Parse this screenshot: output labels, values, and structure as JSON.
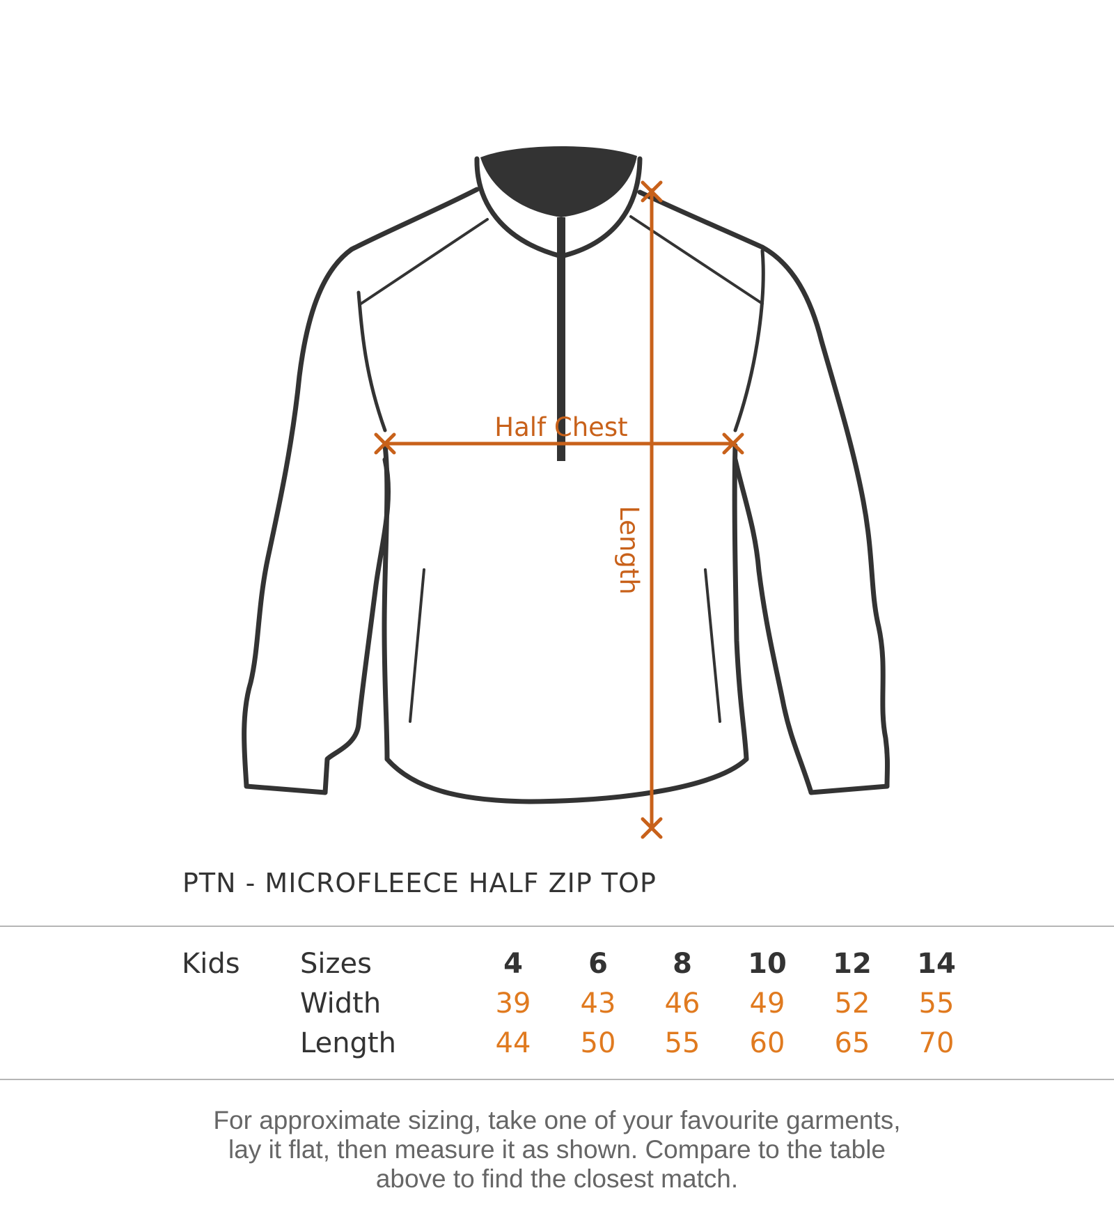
{
  "diagram": {
    "half_chest_label": "Half Chest",
    "length_label": "Length",
    "garment_color": "#333333",
    "measure_color": "#c8611a"
  },
  "product_title": "PTN - MICROFLEECE HALF ZIP TOP",
  "size_table": {
    "group_label": "Kids",
    "row_labels": [
      "Sizes",
      "Width",
      "Length"
    ],
    "sizes": [
      "4",
      "6",
      "8",
      "10",
      "12",
      "14"
    ],
    "width": [
      "39",
      "43",
      "46",
      "49",
      "52",
      "55"
    ],
    "length": [
      "44",
      "50",
      "55",
      "60",
      "65",
      "70"
    ],
    "value_color": "#e07a1f"
  },
  "note": {
    "lines": [
      "For approximate sizing, take one of your favourite garments,",
      "lay it flat, then measure it as shown. Compare to the table",
      "above to find the closest match."
    ]
  }
}
